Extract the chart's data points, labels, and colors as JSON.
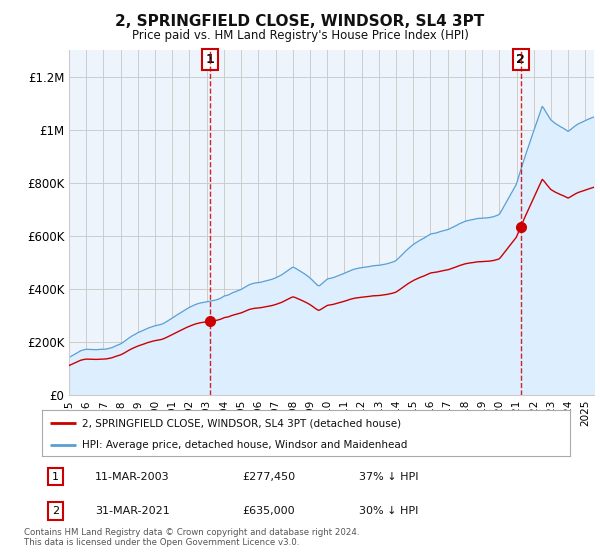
{
  "title": "2, SPRINGFIELD CLOSE, WINDSOR, SL4 3PT",
  "subtitle": "Price paid vs. HM Land Registry's House Price Index (HPI)",
  "legend_line1": "2, SPRINGFIELD CLOSE, WINDSOR, SL4 3PT (detached house)",
  "legend_line2": "HPI: Average price, detached house, Windsor and Maidenhead",
  "footnote": "Contains HM Land Registry data © Crown copyright and database right 2024.\nThis data is licensed under the Open Government Licence v3.0.",
  "table_rows": [
    {
      "num": "1",
      "date": "11-MAR-2003",
      "price": "£277,450",
      "note": "37% ↓ HPI"
    },
    {
      "num": "2",
      "date": "31-MAR-2021",
      "price": "£635,000",
      "note": "30% ↓ HPI"
    }
  ],
  "transaction1_year": 2003.21,
  "transaction1_price": 277450,
  "transaction2_year": 2021.25,
  "transaction2_price": 635000,
  "hpi_color": "#5a9fd4",
  "hpi_fill_color": "#ddeeff",
  "price_color": "#cc0000",
  "vline_color": "#cc0000",
  "grid_color": "#cccccc",
  "background_color": "#ffffff",
  "plot_bg_color": "#eef4fc",
  "ylim": [
    0,
    1300000
  ],
  "xlim_start": 1995.0,
  "xlim_end": 2025.5
}
